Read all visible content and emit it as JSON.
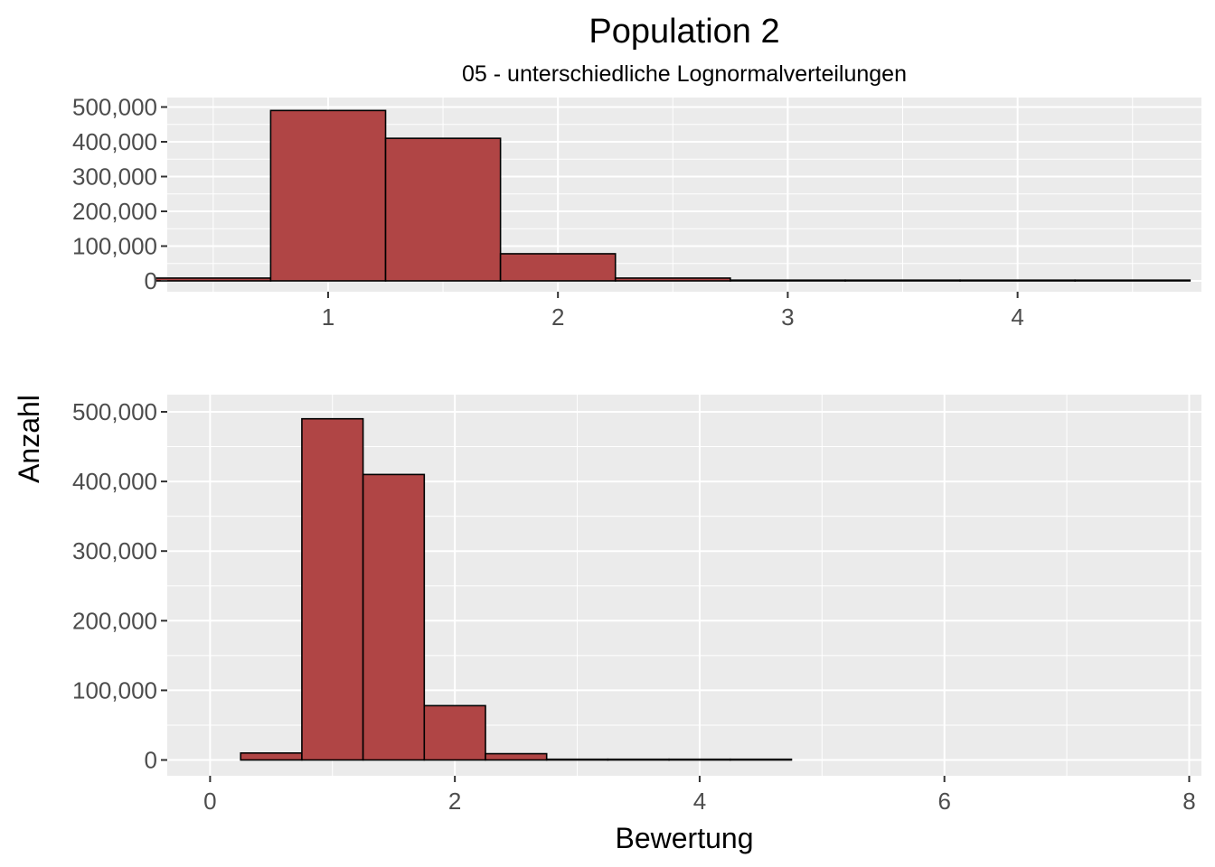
{
  "chart_data": {
    "type": "bar",
    "title": "Population 2",
    "subtitle": "05 - unterschiedliche Lognormalverteilungen",
    "xlabel": "Bewertung",
    "ylabel": "Anzahl",
    "bar_fill": "#b04545",
    "bar_stroke": "#000000",
    "panel_background": "#ebebeb",
    "panels": [
      {
        "name": "top",
        "xlim": [
          0.3,
          4.8
        ],
        "ylim": [
          0,
          500000
        ],
        "x_ticks": [
          1,
          2,
          3,
          4
        ],
        "y_ticks": [
          0,
          100000,
          200000,
          300000,
          400000,
          500000
        ],
        "y_tick_labels": [
          "0",
          "100,000",
          "200,000",
          "300,000",
          "400,000",
          "500,000"
        ],
        "bins": [
          {
            "x0": 0.25,
            "x1": 0.75,
            "value": 8000
          },
          {
            "x0": 0.75,
            "x1": 1.25,
            "value": 490000
          },
          {
            "x0": 1.25,
            "x1": 1.75,
            "value": 410000
          },
          {
            "x0": 1.75,
            "x1": 2.25,
            "value": 78000
          },
          {
            "x0": 2.25,
            "x1": 2.75,
            "value": 8000
          },
          {
            "x0": 2.75,
            "x1": 3.25,
            "value": 1000
          },
          {
            "x0": 3.25,
            "x1": 3.75,
            "value": 0
          },
          {
            "x0": 3.75,
            "x1": 4.25,
            "value": 0
          },
          {
            "x0": 4.25,
            "x1": 4.75,
            "value": 0
          }
        ]
      },
      {
        "name": "bottom",
        "xlim": [
          -0.35,
          8.1
        ],
        "ylim": [
          0,
          500000
        ],
        "x_ticks": [
          0,
          2,
          4,
          6,
          8
        ],
        "y_ticks": [
          0,
          100000,
          200000,
          300000,
          400000,
          500000
        ],
        "y_tick_labels": [
          "0",
          "100,000",
          "200,000",
          "300,000",
          "400,000",
          "500,000"
        ],
        "bins": [
          {
            "x0": 0.25,
            "x1": 0.75,
            "value": 10000
          },
          {
            "x0": 0.75,
            "x1": 1.25,
            "value": 490000
          },
          {
            "x0": 1.25,
            "x1": 1.75,
            "value": 410000
          },
          {
            "x0": 1.75,
            "x1": 2.25,
            "value": 78000
          },
          {
            "x0": 2.25,
            "x1": 2.75,
            "value": 9000
          },
          {
            "x0": 2.75,
            "x1": 3.25,
            "value": 1000
          },
          {
            "x0": 3.25,
            "x1": 3.75,
            "value": 0
          },
          {
            "x0": 3.75,
            "x1": 4.25,
            "value": 0
          },
          {
            "x0": 4.25,
            "x1": 4.75,
            "value": 0
          }
        ]
      }
    ]
  }
}
